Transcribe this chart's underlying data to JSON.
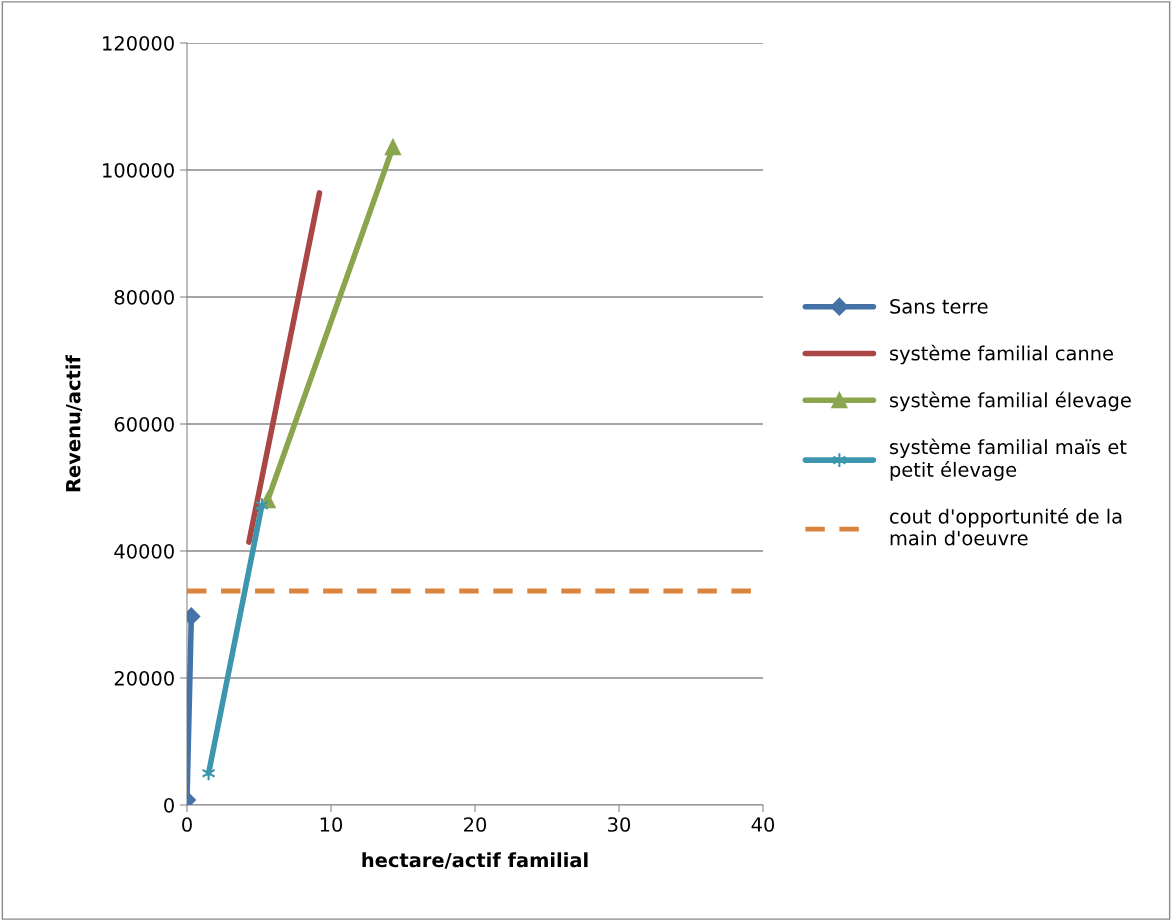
{
  "chart_data": {
    "type": "line",
    "xlabel": "hectare/actif familial",
    "ylabel": "Revenu/actif",
    "xlim": [
      0,
      40
    ],
    "xticks": [
      0,
      10,
      20,
      30,
      40
    ],
    "ylim": [
      0,
      120000
    ],
    "yticks": [
      0,
      20000,
      40000,
      60000,
      80000,
      100000,
      120000
    ],
    "grid": "y",
    "legend": "right",
    "series": [
      {
        "name": "Sans terre",
        "color": "#4572a7",
        "marker": "diamond",
        "x": [
          0,
          0.3
        ],
        "values": [
          800,
          29700
        ]
      },
      {
        "name": "système familial canne",
        "color": "#aa4643",
        "marker": "none",
        "x": [
          4.3,
          9.2
        ],
        "values": [
          41400,
          96400
        ]
      },
      {
        "name": "système familial élevage",
        "color": "#89a54e",
        "marker": "triangle",
        "x": [
          5.6,
          14.3
        ],
        "values": [
          48000,
          103600
        ]
      },
      {
        "name": "système familial maïs et petit élevage",
        "color": "#3d96ae",
        "marker": "cross",
        "x": [
          1.5,
          5.2
        ],
        "values": [
          5000,
          47200
        ]
      }
    ],
    "ref_lines": [
      {
        "axis": "y",
        "value": 33700,
        "label": "cout d'opportunité de la main d'oeuvre",
        "color": "#db843d",
        "line_style": "dashed"
      }
    ]
  }
}
